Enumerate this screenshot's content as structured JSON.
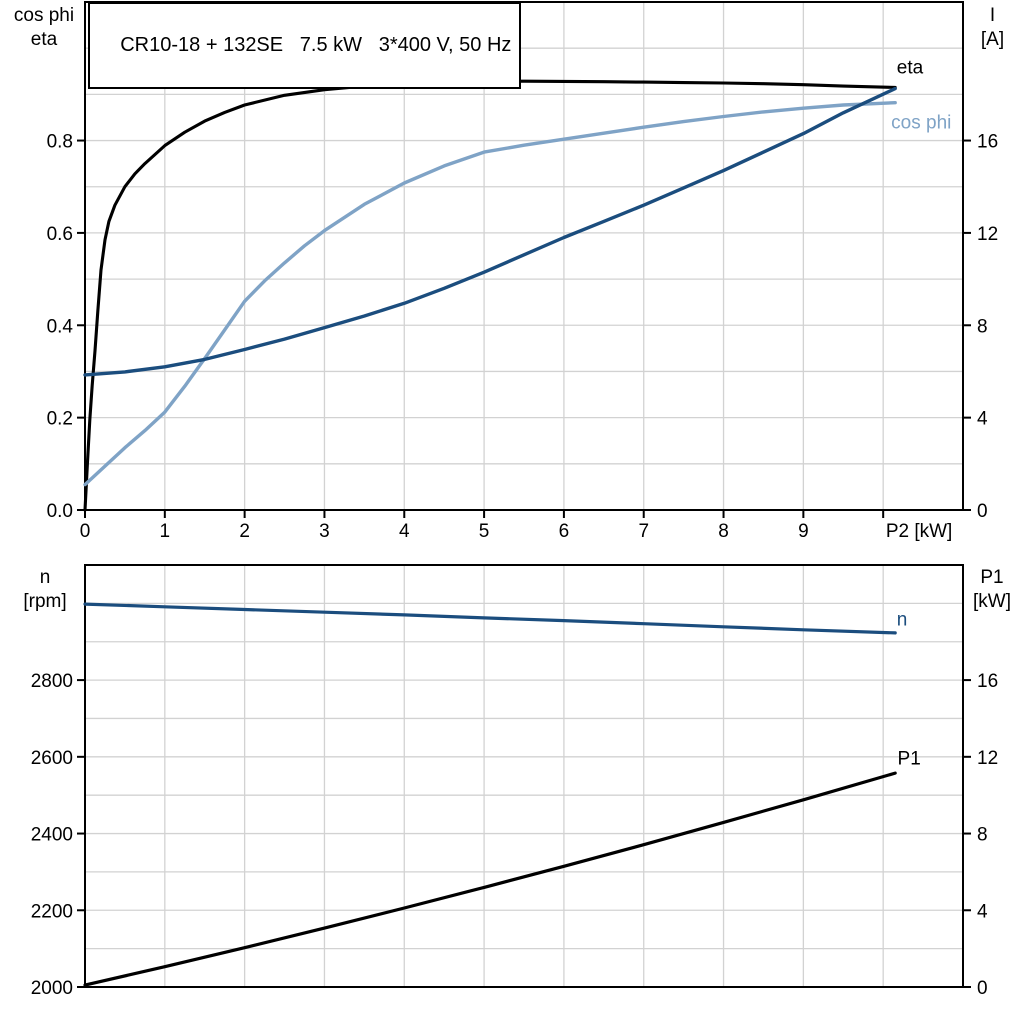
{
  "colors": {
    "eta_curve": "#000000",
    "cos_phi_curve": "#7fa3c6",
    "current_curve": "#1b4d7e",
    "speed_curve": "#1b4d7e",
    "p1_curve": "#000000",
    "grid": "#d2d2d2",
    "frame": "#000000"
  },
  "chart_data": [
    {
      "type": "line",
      "title": "CR10-18 + 132SE   7.5 kW   3*400 V, 50 Hz",
      "xlabel": "P2 [kW]",
      "xlabel_at": 10.45,
      "ylabel_left": [
        "cos phi",
        "eta"
      ],
      "ylabel_right": [
        "I",
        "[A]"
      ],
      "xlim": [
        0,
        11
      ],
      "ylim_left": [
        0,
        1.1
      ],
      "ylim_right": [
        0,
        22
      ],
      "grid_x_step": 1,
      "grid_y_step": 0.1,
      "x_ticks": [
        0,
        1,
        2,
        3,
        4,
        5,
        6,
        7,
        8,
        9,
        10
      ],
      "x_tick_labels": [
        "0",
        "1",
        "2",
        "3",
        "4",
        "5",
        "6",
        "7",
        "8",
        "9",
        ""
      ],
      "y_ticks_left": {
        "values": [
          0,
          0.2,
          0.4,
          0.6,
          0.8
        ],
        "labels": [
          "0.0",
          "0.2",
          "0.4",
          "0.6",
          "0.8"
        ]
      },
      "y_ticks_right": {
        "values": [
          0,
          4,
          8,
          12,
          16
        ],
        "labels": [
          "0",
          "4",
          "8",
          "12",
          "16"
        ]
      },
      "legend_position": "end-of-curve",
      "series": [
        {
          "name": "eta",
          "label": "eta",
          "axis": "left",
          "color": "#000000",
          "width": 3.1,
          "label_at": [
            10.17,
            0.945
          ],
          "points": [
            [
              0,
              0
            ],
            [
              0.03,
              0.1
            ],
            [
              0.06,
              0.195
            ],
            [
              0.09,
              0.27
            ],
            [
              0.125,
              0.345
            ],
            [
              0.16,
              0.43
            ],
            [
              0.2,
              0.52
            ],
            [
              0.25,
              0.585
            ],
            [
              0.3,
              0.625
            ],
            [
              0.375,
              0.66
            ],
            [
              0.5,
              0.7
            ],
            [
              0.625,
              0.728
            ],
            [
              0.75,
              0.75
            ],
            [
              1,
              0.789
            ],
            [
              1.25,
              0.818
            ],
            [
              1.5,
              0.842
            ],
            [
              1.75,
              0.861
            ],
            [
              2,
              0.877
            ],
            [
              2.5,
              0.898
            ],
            [
              3,
              0.91
            ],
            [
              3.5,
              0.918
            ],
            [
              4,
              0.923
            ],
            [
              4.5,
              0.926
            ],
            [
              5,
              0.928
            ],
            [
              5.5,
              0.9285
            ],
            [
              6,
              0.928
            ],
            [
              6.5,
              0.9275
            ],
            [
              7,
              0.9265
            ],
            [
              7.5,
              0.9255
            ],
            [
              8,
              0.9245
            ],
            [
              8.5,
              0.923
            ],
            [
              9,
              0.921
            ],
            [
              9.5,
              0.918
            ],
            [
              10.15,
              0.915
            ]
          ]
        },
        {
          "name": "cos phi",
          "label": "cos phi",
          "axis": "left",
          "color": "#7fa3c6",
          "width": 3.4,
          "label_at": [
            10.1,
            0.826
          ],
          "points": [
            [
              0,
              0.055
            ],
            [
              0.25,
              0.095
            ],
            [
              0.5,
              0.135
            ],
            [
              0.75,
              0.172
            ],
            [
              1,
              0.212
            ],
            [
              1.25,
              0.268
            ],
            [
              1.5,
              0.328
            ],
            [
              1.75,
              0.39
            ],
            [
              2,
              0.452
            ],
            [
              2.25,
              0.496
            ],
            [
              2.5,
              0.535
            ],
            [
              2.75,
              0.572
            ],
            [
              3,
              0.605
            ],
            [
              3.5,
              0.662
            ],
            [
              4,
              0.708
            ],
            [
              4.5,
              0.745
            ],
            [
              5,
              0.775
            ],
            [
              5.5,
              0.79
            ],
            [
              6,
              0.803
            ],
            [
              6.5,
              0.816
            ],
            [
              7,
              0.829
            ],
            [
              7.5,
              0.841
            ],
            [
              8,
              0.852
            ],
            [
              8.5,
              0.862
            ],
            [
              9,
              0.87
            ],
            [
              9.5,
              0.877
            ],
            [
              10.15,
              0.882
            ]
          ]
        },
        {
          "name": "I",
          "label": "",
          "axis": "right",
          "color": "#1b4d7e",
          "width": 3.4,
          "label_at": [
            0,
            0
          ],
          "points": [
            [
              0,
              5.85
            ],
            [
              0.5,
              5.98
            ],
            [
              1,
              6.2
            ],
            [
              1.5,
              6.52
            ],
            [
              2,
              6.95
            ],
            [
              2.5,
              7.4
            ],
            [
              3,
              7.9
            ],
            [
              3.5,
              8.4
            ],
            [
              4,
              8.95
            ],
            [
              4.5,
              9.6
            ],
            [
              5,
              10.3
            ],
            [
              5.5,
              11.05
            ],
            [
              6,
              11.8
            ],
            [
              6.5,
              12.5
            ],
            [
              7,
              13.2
            ],
            [
              7.5,
              13.95
            ],
            [
              8,
              14.7
            ],
            [
              8.5,
              15.5
            ],
            [
              9,
              16.3
            ],
            [
              9.5,
              17.2
            ],
            [
              10.15,
              18.25
            ]
          ]
        }
      ]
    },
    {
      "type": "line",
      "title": "",
      "xlabel": "",
      "xlabel_at": 0,
      "ylabel_left": [
        "n",
        "[rpm]"
      ],
      "ylabel_right": [
        "P1",
        "[kW]"
      ],
      "xlim": [
        0,
        11
      ],
      "ylim_left": [
        2000,
        3100
      ],
      "ylim_right": [
        0,
        22
      ],
      "grid_x_step": 1,
      "grid_y_step": 100,
      "x_ticks": [],
      "x_tick_labels": [],
      "y_ticks_left": {
        "values": [
          2000,
          2200,
          2400,
          2600,
          2800
        ],
        "labels": [
          "2000",
          "2200",
          "2400",
          "2600",
          "2800"
        ]
      },
      "y_ticks_right": {
        "values": [
          0,
          4,
          8,
          12,
          16
        ],
        "labels": [
          "0",
          "4",
          "8",
          "12",
          "16"
        ]
      },
      "legend_position": "end-of-curve",
      "series": [
        {
          "name": "n",
          "label": "n",
          "axis": "left",
          "color": "#1b4d7e",
          "width": 3.2,
          "label_at": [
            10.17,
            2942
          ],
          "points": [
            [
              0,
              2998
            ],
            [
              1,
              2991
            ],
            [
              2,
              2984
            ],
            [
              3,
              2977
            ],
            [
              4,
              2970
            ],
            [
              5,
              2962
            ],
            [
              6,
              2955
            ],
            [
              7,
              2947
            ],
            [
              8,
              2939
            ],
            [
              9,
              2931
            ],
            [
              10.15,
              2923
            ]
          ]
        },
        {
          "name": "P1",
          "label": "P1",
          "axis": "right",
          "color": "#000000",
          "width": 3.2,
          "label_at": [
            10.18,
            11.6
          ],
          "points": [
            [
              0,
              0.1
            ],
            [
              1,
              1.06
            ],
            [
              2,
              2.05
            ],
            [
              3,
              3.07
            ],
            [
              4,
              4.12
            ],
            [
              5,
              5.19
            ],
            [
              6,
              6.29
            ],
            [
              7,
              7.42
            ],
            [
              8,
              8.58
            ],
            [
              9,
              9.76
            ],
            [
              10.15,
              11.15
            ]
          ]
        }
      ]
    }
  ]
}
